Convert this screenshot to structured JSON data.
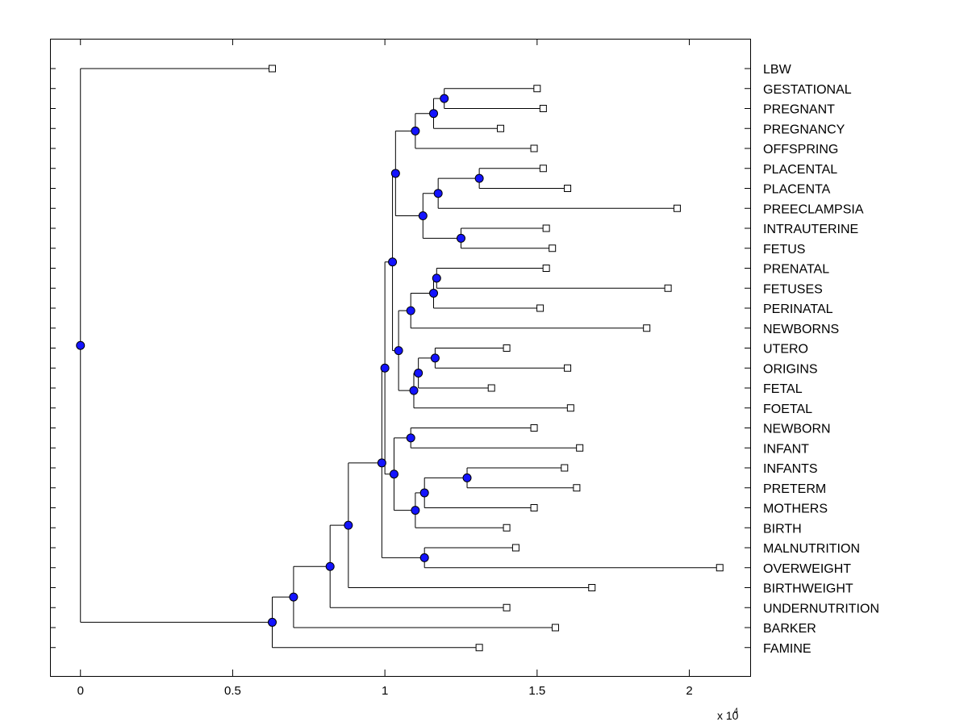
{
  "colors": {
    "node_fill": "#1414ff",
    "leaf_fill": "#ffffff",
    "line": "#000000",
    "background": "#ffffff"
  },
  "chart_data": {
    "type": "dendrogram",
    "xlim": [
      -1000,
      22000
    ],
    "x_ticks": [
      0,
      5000,
      10000,
      15000,
      20000
    ],
    "x_tick_labels": [
      "0",
      "0.5",
      "1",
      "1.5",
      "2"
    ],
    "x_multiplier_base": "x 10",
    "x_multiplier_exp": "4",
    "grid": false,
    "leaves": [
      {
        "label": "LBW",
        "x": 6300
      },
      {
        "label": "GESTATIONAL",
        "x": 15000
      },
      {
        "label": "PREGNANT",
        "x": 15200
      },
      {
        "label": "PREGNANCY",
        "x": 13800
      },
      {
        "label": "OFFSPRING",
        "x": 14900
      },
      {
        "label": "PLACENTAL",
        "x": 15200
      },
      {
        "label": "PLACENTA",
        "x": 16000
      },
      {
        "label": "PREECLAMPSIA",
        "x": 19600
      },
      {
        "label": "INTRAUTERINE",
        "x": 15300
      },
      {
        "label": "FETUS",
        "x": 15500
      },
      {
        "label": "PRENATAL",
        "x": 15300
      },
      {
        "label": "FETUSES",
        "x": 19300
      },
      {
        "label": "PERINATAL",
        "x": 15100
      },
      {
        "label": "NEWBORNS",
        "x": 18600
      },
      {
        "label": "UTERO",
        "x": 14000
      },
      {
        "label": "ORIGINS",
        "x": 16000
      },
      {
        "label": "FETAL",
        "x": 13500
      },
      {
        "label": "FOETAL",
        "x": 16100
      },
      {
        "label": "NEWBORN",
        "x": 14900
      },
      {
        "label": "INFANT",
        "x": 16400
      },
      {
        "label": "INFANTS",
        "x": 15900
      },
      {
        "label": "PRETERM",
        "x": 16300
      },
      {
        "label": "MOTHERS",
        "x": 14900
      },
      {
        "label": "BIRTH",
        "x": 14000
      },
      {
        "label": "MALNUTRITION",
        "x": 14300
      },
      {
        "label": "OVERWEIGHT",
        "x": 21000
      },
      {
        "label": "BIRTHWEIGHT",
        "x": 16800
      },
      {
        "label": "UNDERNUTRITION",
        "x": 14000
      },
      {
        "label": "BARKER",
        "x": 15600
      },
      {
        "label": "FAMINE",
        "x": 13100
      }
    ],
    "tree": {
      "x": 0,
      "children": [
        {
          "leaf": 0
        },
        {
          "x": 6300,
          "children": [
            {
              "x": 7000,
              "children": [
                {
                  "x": 8200,
                  "children": [
                    {
                      "x": 8800,
                      "children": [
                        {
                          "x": 9900,
                          "children": [
                            {
                              "x": 10000,
                              "children": [
                                {
                                  "x": 10250,
                                  "children": [
                                    {
                                      "x": 10350,
                                      "children": [
                                        {
                                          "x": 11000,
                                          "children": [
                                            {
                                              "x": 11600,
                                              "children": [
                                                {
                                                  "x": 11950,
                                                  "children": [
                                                    {
                                                      "leaf": 1
                                                    },
                                                    {
                                                      "leaf": 2
                                                    }
                                                  ]
                                                },
                                                {
                                                  "leaf": 3
                                                }
                                              ]
                                            },
                                            {
                                              "leaf": 4
                                            }
                                          ]
                                        },
                                        {
                                          "x": 11250,
                                          "children": [
                                            {
                                              "x": 11750,
                                              "children": [
                                                {
                                                  "x": 13100,
                                                  "children": [
                                                    {
                                                      "leaf": 5
                                                    },
                                                    {
                                                      "leaf": 6
                                                    }
                                                  ]
                                                },
                                                {
                                                  "leaf": 7
                                                }
                                              ]
                                            },
                                            {
                                              "x": 12500,
                                              "children": [
                                                {
                                                  "leaf": 8
                                                },
                                                {
                                                  "leaf": 9
                                                }
                                              ]
                                            }
                                          ]
                                        }
                                      ]
                                    },
                                    {
                                      "x": 10450,
                                      "children": [
                                        {
                                          "x": 10850,
                                          "children": [
                                            {
                                              "x": 11600,
                                              "children": [
                                                {
                                                  "x": 11700,
                                                  "children": [
                                                    {
                                                      "leaf": 10
                                                    },
                                                    {
                                                      "leaf": 11
                                                    }
                                                  ]
                                                },
                                                {
                                                  "leaf": 12
                                                }
                                              ]
                                            },
                                            {
                                              "leaf": 13
                                            }
                                          ]
                                        },
                                        {
                                          "x": 10950,
                                          "children": [
                                            {
                                              "x": 11100,
                                              "children": [
                                                {
                                                  "x": 11650,
                                                  "children": [
                                                    {
                                                      "leaf": 14
                                                    },
                                                    {
                                                      "leaf": 15
                                                    }
                                                  ]
                                                },
                                                {
                                                  "leaf": 16
                                                }
                                              ]
                                            },
                                            {
                                              "leaf": 17
                                            }
                                          ]
                                        }
                                      ]
                                    }
                                  ]
                                },
                                {
                                  "x": 10300,
                                  "children": [
                                    {
                                      "x": 10850,
                                      "children": [
                                        {
                                          "leaf": 18
                                        },
                                        {
                                          "leaf": 19
                                        }
                                      ]
                                    },
                                    {
                                      "x": 11000,
                                      "children": [
                                        {
                                          "x": 11300,
                                          "children": [
                                            {
                                              "x": 12700,
                                              "children": [
                                                {
                                                  "leaf": 20
                                                },
                                                {
                                                  "leaf": 21
                                                }
                                              ]
                                            },
                                            {
                                              "leaf": 22
                                            }
                                          ]
                                        },
                                        {
                                          "leaf": 23
                                        }
                                      ]
                                    }
                                  ]
                                }
                              ]
                            },
                            {
                              "x": 11300,
                              "children": [
                                {
                                  "leaf": 24
                                },
                                {
                                  "leaf": 25
                                }
                              ]
                            }
                          ]
                        },
                        {
                          "leaf": 26
                        }
                      ]
                    },
                    {
                      "leaf": 27
                    }
                  ]
                },
                {
                  "leaf": 28
                }
              ]
            },
            {
              "leaf": 29
            }
          ]
        }
      ]
    }
  }
}
